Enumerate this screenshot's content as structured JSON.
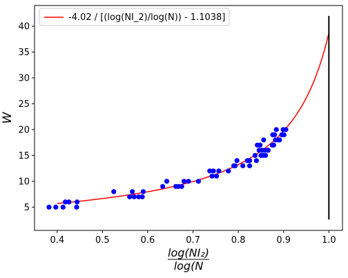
{
  "chart_data": {
    "type": "scatter",
    "xlabel_num": "log(NI₂)",
    "xlabel_den": "log(N",
    "ylabel": "W",
    "xlim": [
      0.35,
      1.03
    ],
    "ylim": [
      0.5,
      44
    ],
    "xticks": [
      0.4,
      0.5,
      0.6,
      0.7,
      0.8,
      0.9,
      1.0
    ],
    "xtick_labels": [
      "0.4",
      "0.5",
      "0.6",
      "0.7",
      "0.8",
      "0.9",
      "1.0"
    ],
    "yticks": [
      5,
      10,
      15,
      20,
      25,
      30,
      35,
      40
    ],
    "ytick_labels": [
      "5",
      "10",
      "15",
      "20",
      "25",
      "30",
      "35",
      "40"
    ],
    "legend_position": "top-left",
    "scatter_color": "#0000ff",
    "curve_color": "#ff0000",
    "vline_color": "#000000",
    "series": [
      {
        "kind": "scatter",
        "points": [
          [
            0.382,
            5
          ],
          [
            0.397,
            5
          ],
          [
            0.413,
            5
          ],
          [
            0.418,
            6
          ],
          [
            0.426,
            6
          ],
          [
            0.443,
            5
          ],
          [
            0.444,
            6
          ],
          [
            0.525,
            8
          ],
          [
            0.56,
            7
          ],
          [
            0.566,
            8
          ],
          [
            0.57,
            7
          ],
          [
            0.58,
            7
          ],
          [
            0.588,
            7
          ],
          [
            0.59,
            8
          ],
          [
            0.633,
            9
          ],
          [
            0.642,
            10
          ],
          [
            0.662,
            9
          ],
          [
            0.668,
            9
          ],
          [
            0.675,
            9
          ],
          [
            0.68,
            10
          ],
          [
            0.69,
            10
          ],
          [
            0.712,
            10
          ],
          [
            0.737,
            12
          ],
          [
            0.742,
            11
          ],
          [
            0.745,
            12
          ],
          [
            0.752,
            11
          ],
          [
            0.757,
            12
          ],
          [
            0.778,
            12
          ],
          [
            0.79,
            13
          ],
          [
            0.793,
            13
          ],
          [
            0.797,
            14
          ],
          [
            0.81,
            13
          ],
          [
            0.82,
            14
          ],
          [
            0.825,
            14
          ],
          [
            0.825,
            13
          ],
          [
            0.837,
            15
          ],
          [
            0.84,
            14
          ],
          [
            0.842,
            17
          ],
          [
            0.846,
            16
          ],
          [
            0.848,
            17
          ],
          [
            0.85,
            15
          ],
          [
            0.852,
            16
          ],
          [
            0.855,
            15
          ],
          [
            0.856,
            18
          ],
          [
            0.858,
            16
          ],
          [
            0.86,
            15
          ],
          [
            0.864,
            16
          ],
          [
            0.866,
            16
          ],
          [
            0.875,
            17
          ],
          [
            0.876,
            19
          ],
          [
            0.878,
            17
          ],
          [
            0.88,
            19
          ],
          [
            0.882,
            18
          ],
          [
            0.884,
            20
          ],
          [
            0.888,
            18
          ],
          [
            0.891,
            18
          ],
          [
            0.896,
            19
          ],
          [
            0.899,
            20
          ],
          [
            0.901,
            19
          ],
          [
            0.905,
            20
          ]
        ]
      },
      {
        "kind": "line",
        "name": "-4.02 / [(log(NI_2)/log(N)) - 1.1038]",
        "formula": "-4.02 / (x - 1.1038)",
        "x_range": [
          0.4,
          1.0
        ]
      },
      {
        "kind": "vline",
        "x": 1.0,
        "y_range": [
          2.6,
          42
        ]
      }
    ]
  }
}
